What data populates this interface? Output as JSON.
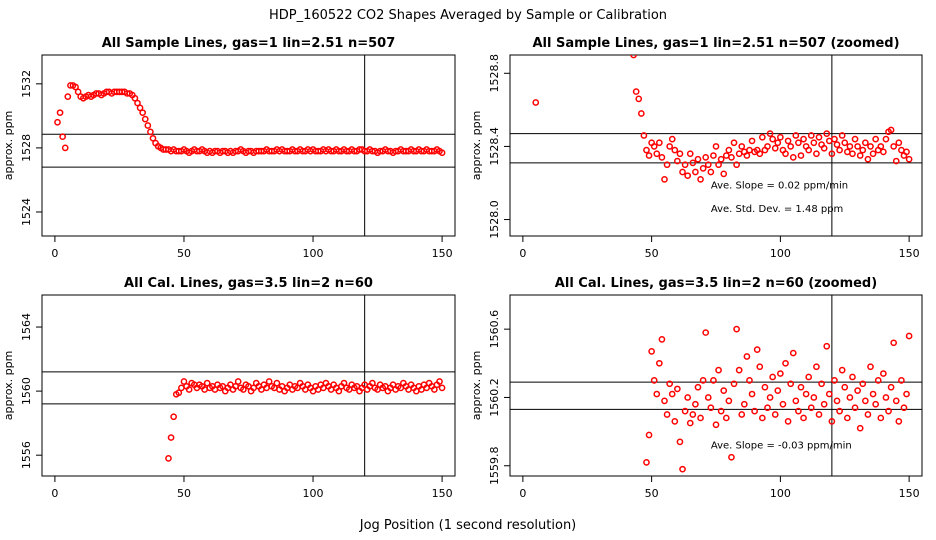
{
  "figure": {
    "main_title": "HDP_160522  CO2 Shapes Averaged by Sample or Calibration",
    "xlabel": "Jog Position (1 second resolution)"
  },
  "colors": {
    "points": "#ff0000",
    "lines": "#000000"
  },
  "chart_data": [
    {
      "type": "scatter",
      "title": "All Sample Lines, gas=1 lin=2.51 n=507",
      "ylabel": "approx. ppm",
      "xlim": [
        -5,
        155
      ],
      "ylim": [
        1522.5,
        1533.8
      ],
      "xticks": [
        0,
        50,
        100,
        150
      ],
      "yticks": [
        1524,
        1528,
        1532
      ],
      "hlines": [
        1528.85,
        1526.8
      ],
      "vline": 120,
      "points": {
        "x": [
          1,
          2,
          3,
          4,
          5,
          6,
          7,
          8,
          9,
          10,
          11,
          12,
          13,
          14,
          15,
          16,
          17,
          18,
          19,
          20,
          21,
          22,
          23,
          24,
          25,
          26,
          27,
          28,
          29,
          30,
          31,
          32,
          33,
          34,
          35,
          36,
          37,
          38,
          39,
          40,
          41,
          42,
          43,
          44,
          45,
          46,
          47,
          48,
          49,
          50,
          51,
          52,
          53,
          54,
          55,
          56,
          57,
          58,
          59,
          60,
          61,
          62,
          63,
          64,
          65,
          66,
          67,
          68,
          69,
          70,
          71,
          72,
          73,
          74,
          75,
          76,
          77,
          78,
          79,
          80,
          81,
          82,
          83,
          84,
          85,
          86,
          87,
          88,
          89,
          90,
          91,
          92,
          93,
          94,
          95,
          96,
          97,
          98,
          99,
          100,
          101,
          102,
          103,
          104,
          105,
          106,
          107,
          108,
          109,
          110,
          111,
          112,
          113,
          114,
          115,
          116,
          117,
          118,
          119,
          120,
          121,
          122,
          123,
          124,
          125,
          126,
          127,
          128,
          129,
          130,
          131,
          132,
          133,
          134,
          135,
          136,
          137,
          138,
          139,
          140,
          141,
          142,
          143,
          144,
          145,
          146,
          147,
          148,
          149,
          150
        ],
        "y": [
          1529.6,
          1530.2,
          1528.7,
          1528.0,
          1531.2,
          1531.9,
          1531.9,
          1531.8,
          1531.5,
          1531.2,
          1531.1,
          1531.2,
          1531.3,
          1531.2,
          1531.3,
          1531.4,
          1531.4,
          1531.3,
          1531.4,
          1531.5,
          1531.5,
          1531.4,
          1531.5,
          1531.5,
          1531.5,
          1531.5,
          1531.5,
          1531.4,
          1531.4,
          1531.3,
          1531.1,
          1530.8,
          1530.5,
          1530.2,
          1529.8,
          1529.4,
          1529.0,
          1528.6,
          1528.3,
          1528.1,
          1528.0,
          1527.9,
          1527.9,
          1527.9,
          1527.8,
          1527.9,
          1527.8,
          1527.8,
          1527.8,
          1527.9,
          1527.8,
          1527.7,
          1527.8,
          1527.9,
          1527.8,
          1527.8,
          1527.9,
          1527.8,
          1527.7,
          1527.8,
          1527.7,
          1527.8,
          1527.8,
          1527.7,
          1527.8,
          1527.8,
          1527.7,
          1527.8,
          1527.7,
          1527.8,
          1527.8,
          1527.9,
          1527.8,
          1527.7,
          1527.8,
          1527.8,
          1527.7,
          1527.8,
          1527.8,
          1527.8,
          1527.8,
          1527.9,
          1527.8,
          1527.8,
          1527.8,
          1527.9,
          1527.8,
          1527.9,
          1527.8,
          1527.8,
          1527.8,
          1527.9,
          1527.8,
          1527.8,
          1527.9,
          1527.8,
          1527.8,
          1527.9,
          1527.8,
          1527.9,
          1527.8,
          1527.8,
          1527.8,
          1527.9,
          1527.8,
          1527.9,
          1527.8,
          1527.8,
          1527.9,
          1527.8,
          1527.8,
          1527.9,
          1527.8,
          1527.8,
          1527.9,
          1527.8,
          1527.8,
          1527.9,
          1527.9,
          1527.8,
          1527.8,
          1527.9,
          1527.8,
          1527.8,
          1527.7,
          1527.8,
          1527.8,
          1527.9,
          1527.8,
          1527.8,
          1527.7,
          1527.8,
          1527.8,
          1527.9,
          1527.8,
          1527.8,
          1527.8,
          1527.9,
          1527.8,
          1527.8,
          1527.9,
          1527.8,
          1527.8,
          1527.9,
          1527.8,
          1527.8,
          1527.8,
          1527.9,
          1527.8,
          1527.7
        ]
      },
      "annotations": []
    },
    {
      "type": "scatter",
      "title": "All Sample Lines, gas=1 lin=2.51 n=507 (zoomed)",
      "ylabel": "approx. ppm",
      "xlim": [
        -5,
        155
      ],
      "ylim": [
        1527.91,
        1528.9
      ],
      "xticks": [
        0,
        50,
        100,
        150
      ],
      "yticks": [
        1528.0,
        1528.4,
        1528.8
      ],
      "ytick_labels": [
        "1528.0",
        "1528.4",
        "1528.8"
      ],
      "hlines": [
        1528.47,
        1528.31
      ],
      "vline": 120,
      "points": {
        "x": [
          5,
          43,
          44,
          45,
          46,
          47,
          48,
          49,
          50,
          51,
          52,
          53,
          54,
          55,
          56,
          57,
          58,
          59,
          60,
          61,
          62,
          63,
          64,
          65,
          66,
          67,
          68,
          69,
          70,
          71,
          72,
          73,
          74,
          75,
          76,
          77,
          78,
          79,
          80,
          81,
          82,
          83,
          84,
          85,
          86,
          87,
          88,
          89,
          90,
          91,
          92,
          93,
          94,
          95,
          96,
          97,
          98,
          99,
          100,
          101,
          102,
          103,
          104,
          105,
          106,
          107,
          108,
          109,
          110,
          111,
          112,
          113,
          114,
          115,
          116,
          117,
          118,
          119,
          120,
          121,
          122,
          123,
          124,
          125,
          126,
          127,
          128,
          129,
          130,
          131,
          132,
          133,
          134,
          135,
          136,
          137,
          138,
          139,
          140,
          141,
          142,
          143,
          144,
          145,
          146,
          147,
          148,
          149,
          150
        ],
        "y": [
          1528.64,
          1528.9,
          1528.7,
          1528.66,
          1528.58,
          1528.46,
          1528.38,
          1528.35,
          1528.42,
          1528.4,
          1528.36,
          1528.42,
          1528.34,
          1528.22,
          1528.3,
          1528.4,
          1528.44,
          1528.38,
          1528.32,
          1528.36,
          1528.26,
          1528.3,
          1528.24,
          1528.36,
          1528.31,
          1528.26,
          1528.33,
          1528.22,
          1528.28,
          1528.34,
          1528.3,
          1528.26,
          1528.35,
          1528.4,
          1528.3,
          1528.33,
          1528.25,
          1528.35,
          1528.38,
          1528.34,
          1528.42,
          1528.3,
          1528.36,
          1528.4,
          1528.37,
          1528.35,
          1528.38,
          1528.43,
          1528.37,
          1528.38,
          1528.36,
          1528.45,
          1528.38,
          1528.4,
          1528.47,
          1528.44,
          1528.39,
          1528.42,
          1528.45,
          1528.38,
          1528.36,
          1528.43,
          1528.4,
          1528.34,
          1528.46,
          1528.42,
          1528.35,
          1528.44,
          1528.4,
          1528.38,
          1528.46,
          1528.42,
          1528.36,
          1528.45,
          1528.41,
          1528.39,
          1528.47,
          1528.43,
          1528.36,
          1528.44,
          1528.41,
          1528.38,
          1528.46,
          1528.42,
          1528.37,
          1528.4,
          1528.36,
          1528.44,
          1528.4,
          1528.35,
          1528.38,
          1528.42,
          1528.33,
          1528.4,
          1528.36,
          1528.44,
          1528.38,
          1528.4,
          1528.37,
          1528.44,
          1528.48,
          1528.49,
          1528.4,
          1528.32,
          1528.42,
          1528.38,
          1528.35,
          1528.37,
          1528.33
        ]
      },
      "annotations": [
        {
          "text": "Ave. Slope =  0.02  ppm/min",
          "x": 73,
          "y": 1528.17
        },
        {
          "text": "Ave. Std. Dev. =  1.48  ppm",
          "x": 73,
          "y": 1528.04
        }
      ]
    },
    {
      "type": "scatter",
      "title": "All Cal. Lines, gas=3.5 lin=2 n=60",
      "ylabel": "approx. ppm",
      "xlim": [
        -5,
        155
      ],
      "ylim": [
        1554.7,
        1566.0
      ],
      "xticks": [
        0,
        50,
        100,
        150
      ],
      "yticks": [
        1556,
        1560,
        1564
      ],
      "hlines": [
        1561.2,
        1559.2
      ],
      "vline": 120,
      "points": {
        "x": [
          44,
          45,
          46,
          47,
          48,
          49,
          50,
          51,
          52,
          53,
          54,
          55,
          56,
          57,
          58,
          59,
          60,
          61,
          62,
          63,
          64,
          65,
          66,
          67,
          68,
          69,
          70,
          71,
          72,
          73,
          74,
          75,
          76,
          77,
          78,
          79,
          80,
          81,
          82,
          83,
          84,
          85,
          86,
          87,
          88,
          89,
          90,
          91,
          92,
          93,
          94,
          95,
          96,
          97,
          98,
          99,
          100,
          101,
          102,
          103,
          104,
          105,
          106,
          107,
          108,
          109,
          110,
          111,
          112,
          113,
          114,
          115,
          116,
          117,
          118,
          119,
          120,
          121,
          122,
          123,
          124,
          125,
          126,
          127,
          128,
          129,
          130,
          131,
          132,
          133,
          134,
          135,
          136,
          137,
          138,
          139,
          140,
          141,
          142,
          143,
          144,
          145,
          146,
          147,
          148,
          149,
          150
        ],
        "y": [
          1555.8,
          1557.1,
          1558.4,
          1559.8,
          1559.9,
          1560.2,
          1560.6,
          1560.3,
          1560.1,
          1560.5,
          1560.4,
          1560.2,
          1560.4,
          1560.3,
          1560.1,
          1560.5,
          1560.2,
          1560.3,
          1560.1,
          1560.4,
          1560.2,
          1560.3,
          1560.0,
          1560.2,
          1560.4,
          1560.1,
          1560.3,
          1560.6,
          1560.2,
          1560.1,
          1560.4,
          1560.3,
          1560.0,
          1560.2,
          1560.5,
          1560.3,
          1560.1,
          1560.4,
          1560.2,
          1560.6,
          1560.3,
          1560.2,
          1560.5,
          1560.1,
          1560.3,
          1560.0,
          1560.2,
          1560.4,
          1560.1,
          1560.3,
          1560.2,
          1560.5,
          1560.3,
          1560.1,
          1560.4,
          1560.2,
          1560.0,
          1560.3,
          1560.1,
          1560.4,
          1560.2,
          1560.5,
          1560.3,
          1560.1,
          1560.4,
          1560.2,
          1560.0,
          1560.3,
          1560.5,
          1560.2,
          1560.1,
          1560.4,
          1560.2,
          1560.3,
          1560.0,
          1560.2,
          1560.4,
          1560.1,
          1560.3,
          1560.5,
          1560.2,
          1560.1,
          1560.4,
          1560.2,
          1560.3,
          1560.0,
          1560.2,
          1560.4,
          1560.1,
          1560.3,
          1560.2,
          1560.5,
          1560.3,
          1560.1,
          1560.4,
          1560.2,
          1560.0,
          1560.3,
          1560.1,
          1560.4,
          1560.2,
          1560.5,
          1560.3,
          1560.1,
          1560.4,
          1560.6,
          1560.2
        ]
      },
      "annotations": []
    },
    {
      "type": "scatter",
      "title": "All Cal. Lines, gas=3.5 lin=2 n=60 (zoomed)",
      "ylabel": "approx. ppm",
      "xlim": [
        -5,
        155
      ],
      "ylim": [
        1559.74,
        1560.8
      ],
      "xticks": [
        0,
        50,
        100,
        150
      ],
      "yticks": [
        1559.8,
        1560.2,
        1560.6
      ],
      "ytick_labels": [
        "1559.8",
        "1560.2",
        "1560.6"
      ],
      "hlines": [
        1560.29,
        1560.13
      ],
      "vline": 120,
      "points": {
        "x": [
          48,
          49,
          50,
          51,
          52,
          53,
          54,
          55,
          56,
          57,
          58,
          59,
          60,
          61,
          62,
          63,
          64,
          65,
          66,
          67,
          68,
          69,
          70,
          71,
          72,
          73,
          74,
          75,
          76,
          77,
          78,
          79,
          80,
          81,
          82,
          83,
          84,
          85,
          86,
          87,
          88,
          89,
          90,
          91,
          92,
          93,
          94,
          95,
          96,
          97,
          98,
          99,
          100,
          101,
          102,
          103,
          104,
          105,
          106,
          107,
          108,
          109,
          110,
          111,
          112,
          113,
          114,
          115,
          116,
          117,
          118,
          119,
          120,
          121,
          122,
          123,
          124,
          125,
          126,
          127,
          128,
          129,
          130,
          131,
          132,
          133,
          134,
          135,
          136,
          137,
          138,
          139,
          140,
          141,
          142,
          143,
          144,
          145,
          146,
          147,
          148,
          149,
          150
        ],
        "y": [
          1559.82,
          1559.98,
          1560.47,
          1560.3,
          1560.22,
          1560.4,
          1560.54,
          1560.18,
          1560.1,
          1560.28,
          1560.22,
          1560.06,
          1560.25,
          1559.94,
          1559.78,
          1560.12,
          1560.2,
          1560.05,
          1560.1,
          1560.16,
          1560.26,
          1560.08,
          1560.3,
          1560.58,
          1560.2,
          1560.14,
          1560.3,
          1560.04,
          1560.36,
          1560.12,
          1560.24,
          1560.08,
          1560.18,
          1559.85,
          1560.28,
          1560.6,
          1560.36,
          1560.1,
          1560.16,
          1560.44,
          1560.3,
          1560.22,
          1560.12,
          1560.48,
          1560.38,
          1560.08,
          1560.26,
          1560.14,
          1560.2,
          1560.32,
          1560.1,
          1560.24,
          1560.34,
          1560.16,
          1560.4,
          1560.06,
          1560.28,
          1560.46,
          1560.18,
          1560.12,
          1560.26,
          1560.08,
          1560.22,
          1560.32,
          1560.14,
          1560.2,
          1560.38,
          1560.1,
          1560.28,
          1560.16,
          1560.5,
          1560.22,
          1560.06,
          1560.3,
          1560.18,
          1560.12,
          1560.36,
          1560.26,
          1560.08,
          1560.2,
          1560.32,
          1560.14,
          1560.24,
          1560.02,
          1560.28,
          1560.18,
          1560.1,
          1560.38,
          1560.22,
          1560.16,
          1560.3,
          1560.08,
          1560.34,
          1560.2,
          1560.12,
          1560.26,
          1560.52,
          1560.18,
          1560.06,
          1560.3,
          1560.14,
          1560.22,
          1560.56
        ]
      },
      "annotations": [
        {
          "text": "Ave. Slope = -0.03  ppm/min",
          "x": 73,
          "y": 1559.9
        }
      ]
    }
  ]
}
